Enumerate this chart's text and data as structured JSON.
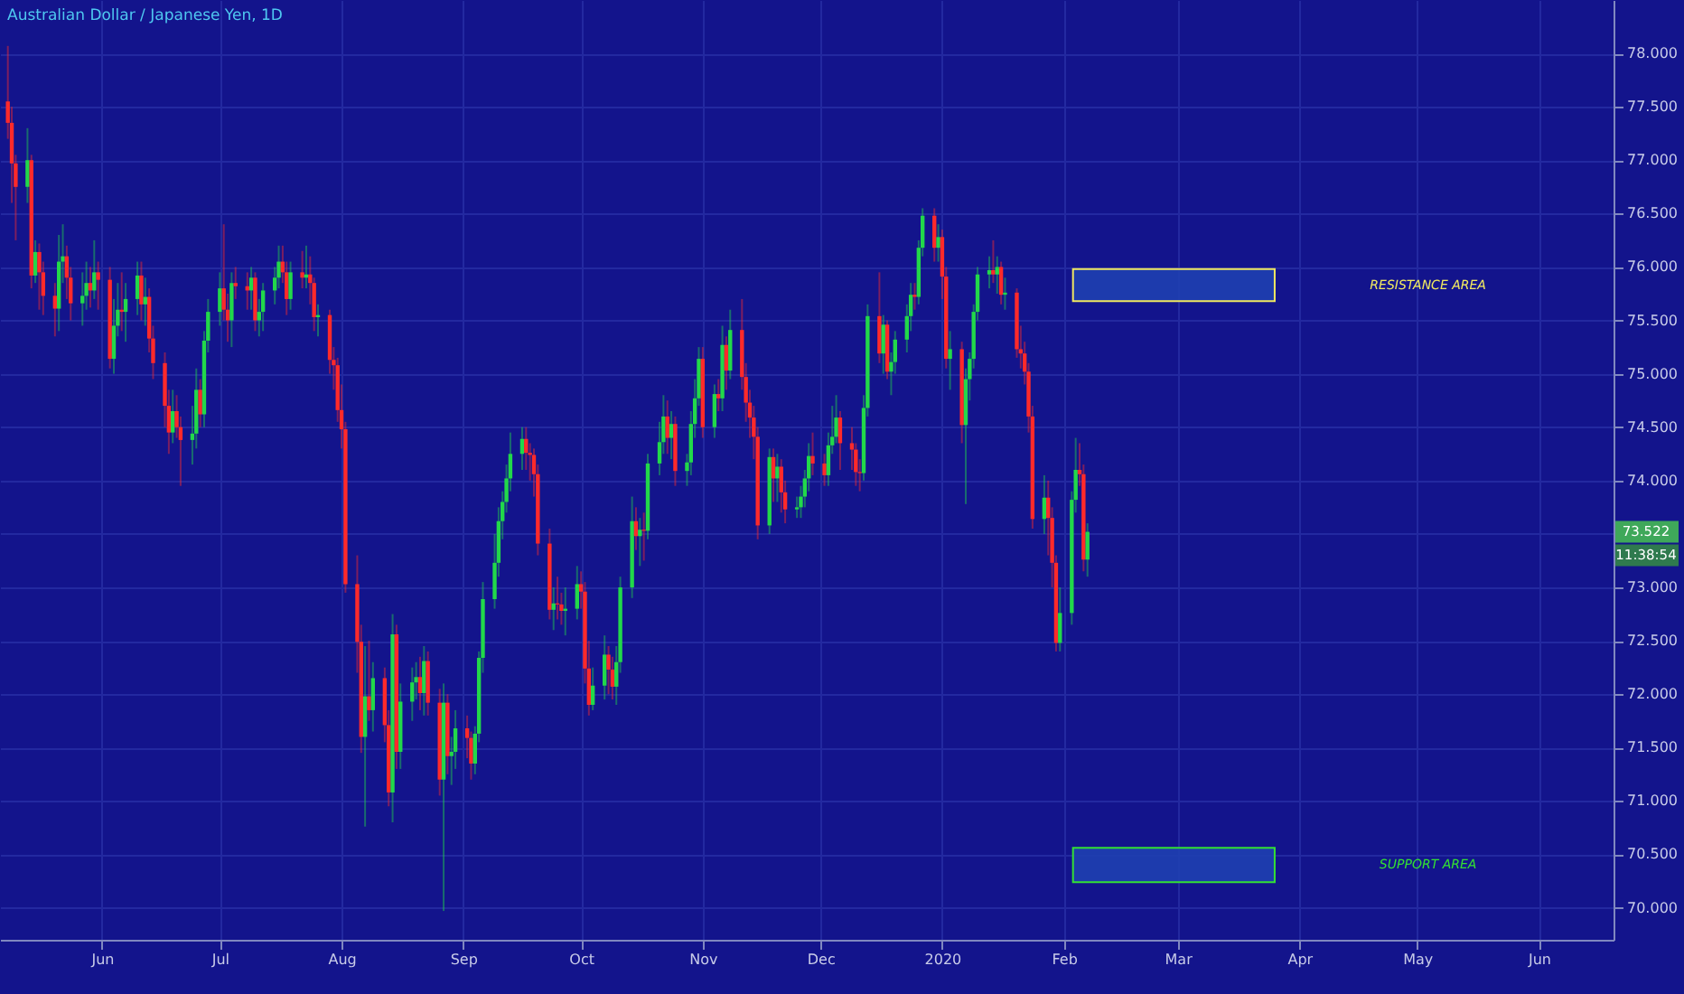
{
  "chart_data": {
    "type": "candlestick",
    "title": "Australian Dollar / Japanese Yen, 1D",
    "colors": [
      "#ff2a2a",
      "#ff2a2a",
      "#ff2a2a",
      "#22d84a",
      "#ff2a2a",
      "#22d84a",
      "#ff2a2a",
      "#ff2a2a",
      "#ff2a2a",
      "#22d84a",
      "#22d84a",
      "#ff2a2a",
      "#ff2a2a",
      "#22d84a",
      "#22d84a",
      "#ff2a2a",
      "#22d84a",
      "#ff2a2a",
      "#ff2a2a",
      "#22d84a",
      "#22d84a",
      "#ff2a2a",
      "#22d84a",
      "#22d84a",
      "#ff2a2a",
      "#22d84a",
      "#ff2a2a",
      "#ff2a2a",
      "#ff2a2a",
      "#ff2a2a",
      "#22d84a",
      "#ff2a2a",
      "#ff2a2a",
      "#22d84a",
      "#22d84a",
      "#ff2a2a",
      "#22d84a",
      "#22d84a",
      "#22d84a",
      "#ff2a2a",
      "#ff2a2a",
      "#22d84a",
      "#ff2a2a",
      "#ff2a2a",
      "#22d84a",
      "#ff2a2a",
      "#22d84a",
      "#22d84a",
      "#22d84a",
      "#22d84a",
      "#ff2a2a",
      "#ff2a2a",
      "#22d84a",
      "#ff2a2a",
      "#22d84a",
      "#ff2a2a",
      "#ff2a2a",
      "#22d84a",
      "#ff2a2a",
      "#ff2a2a",
      "#ff2a2a",
      "#ff2a2a",
      "#ff2a2a",
      "#ff2a2a",
      "#ff2a2a",
      "#22d84a",
      "#ff2a2a",
      "#22d84a",
      "#ff2a2a",
      "#ff2a2a",
      "#22d84a",
      "#ff2a2a",
      "#22d84a",
      "#22d84a",
      "#22d84a",
      "#ff2a2a",
      "#22d84a",
      "#ff2a2a",
      "#ff2a2a",
      "#22d84a",
      "#ff2a2a",
      "#22d84a",
      "#22d84a",
      "#ff2a2a",
      "#ff2a2a",
      "#22d84a",
      "#22d84a",
      "#22d84a",
      "#22d84a",
      "#22d84a",
      "#22d84a",
      "#22d84a",
      "#22d84a",
      "#22d84a",
      "#ff2a2a",
      "#ff2a2a",
      "#ff2a2a",
      "#ff2a2a",
      "#ff2a2a",
      "#22d84a",
      "#ff2a2a",
      "#ff2a2a",
      "#22d84a",
      "#22d84a",
      "#ff2a2a",
      "#ff2a2a",
      "#ff2a2a",
      "#22d84a",
      "#22d84a",
      "#ff2a2a",
      "#ff2a2a",
      "#22d84a",
      "#22d84a",
      "#22d84a",
      "#ff2a2a",
      "#22d84a",
      "#ff2a2a",
      "#22d84a",
      "#22d84a",
      "#22d84a",
      "#ff2a2a",
      "#22d84a",
      "#ff2a2a",
      "#22d84a",
      "#22d84a",
      "#22d84a",
      "#22d84a",
      "#ff2a2a",
      "#22d84a",
      "#ff2a2a",
      "#22d84a",
      "#ff2a2a",
      "#22d84a",
      "#ff2a2a",
      "#ff2a2a",
      "#ff2a2a",
      "#ff2a2a",
      "#ff2a2a",
      "#22d84a",
      "#ff2a2a",
      "#22d84a",
      "#ff2a2a",
      "#ff2a2a",
      "#22d84a",
      "#22d84a",
      "#22d84a",
      "#22d84a",
      "#ff2a2a",
      "#ff2a2a",
      "#22d84a",
      "#22d84a",
      "#22d84a",
      "#ff2a2a",
      "#ff2a2a",
      "#ff2a2a",
      "#ff2a2a",
      "#22d84a",
      "#22d84a",
      "#ff2a2a",
      "#22d84a",
      "#ff2a2a",
      "#22d84a",
      "#22d84a",
      "#22d84a",
      "#22d84a",
      "#ff2a2a",
      "#22d84a",
      "#22d84a",
      "#ff2a2a",
      "#22d84a",
      "#ff2a2a",
      "#ff2a2a",
      "#22d84a",
      "#ff2a2a",
      "#22d84a",
      "#22d84a",
      "#22d84a",
      "#22d84a",
      "#22d84a",
      "#ff2a2a",
      "#22d84a",
      "#ff2a2a",
      "#22d84a",
      "#ff2a2a",
      "#ff2a2a",
      "#ff2a2a",
      "#ff2a2a",
      "#ff2a2a",
      "#22d84a",
      "#ff2a2a",
      "#ff2a2a",
      "#ff2a2a",
      "#22d84a",
      "#22d84a",
      "#22d84a",
      "#ff2a2a",
      "#ff2a2a",
      "#22d84a"
    ],
    "x": [
      "2019-05-08",
      "2019-05-09",
      "2019-05-10",
      "2019-05-13",
      "2019-05-14",
      "2019-05-15",
      "2019-05-16",
      "2019-05-17",
      "2019-05-20",
      "2019-05-21",
      "2019-05-22",
      "2019-05-23",
      "2019-05-24",
      "2019-05-27",
      "2019-05-28",
      "2019-05-29",
      "2019-05-30",
      "2019-05-31",
      "2019-06-03",
      "2019-06-04",
      "2019-06-05",
      "2019-06-06",
      "2019-06-07",
      "2019-06-10",
      "2019-06-11",
      "2019-06-12",
      "2019-06-13",
      "2019-06-14",
      "2019-06-17",
      "2019-06-18",
      "2019-06-19",
      "2019-06-20",
      "2019-06-21",
      "2019-06-24",
      "2019-06-25",
      "2019-06-26",
      "2019-06-27",
      "2019-06-28",
      "2019-07-01",
      "2019-07-02",
      "2019-07-03",
      "2019-07-04",
      "2019-07-05",
      "2019-07-08",
      "2019-07-09",
      "2019-07-10",
      "2019-07-11",
      "2019-07-12",
      "2019-07-15",
      "2019-07-16",
      "2019-07-17",
      "2019-07-18",
      "2019-07-19",
      "2019-07-22",
      "2019-07-23",
      "2019-07-24",
      "2019-07-25",
      "2019-07-26",
      "2019-07-29",
      "2019-07-30",
      "2019-07-31",
      "2019-08-01",
      "2019-08-02",
      "2019-08-05",
      "2019-08-06",
      "2019-08-07",
      "2019-08-08",
      "2019-08-09",
      "2019-08-12",
      "2019-08-13",
      "2019-08-14",
      "2019-08-15",
      "2019-08-16",
      "2019-08-19",
      "2019-08-20",
      "2019-08-21",
      "2019-08-22",
      "2019-08-23",
      "2019-08-26",
      "2019-08-27",
      "2019-08-28",
      "2019-08-29",
      "2019-08-30",
      "2019-09-02",
      "2019-09-03",
      "2019-09-04",
      "2019-09-05",
      "2019-09-06",
      "2019-09-09",
      "2019-09-10",
      "2019-09-11",
      "2019-09-12",
      "2019-09-13",
      "2019-09-16",
      "2019-09-17",
      "2019-09-18",
      "2019-09-19",
      "2019-09-20",
      "2019-09-23",
      "2019-09-24",
      "2019-09-25",
      "2019-09-26",
      "2019-09-27",
      "2019-09-30",
      "2019-10-01",
      "2019-10-02",
      "2019-10-03",
      "2019-10-04",
      "2019-10-07",
      "2019-10-08",
      "2019-10-09",
      "2019-10-10",
      "2019-10-11",
      "2019-10-14",
      "2019-10-15",
      "2019-10-16",
      "2019-10-17",
      "2019-10-18",
      "2019-10-21",
      "2019-10-22",
      "2019-10-23",
      "2019-10-24",
      "2019-10-25",
      "2019-10-28",
      "2019-10-29",
      "2019-10-30",
      "2019-10-31",
      "2019-11-01",
      "2019-11-04",
      "2019-11-05",
      "2019-11-06",
      "2019-11-07",
      "2019-11-08",
      "2019-11-11",
      "2019-11-12",
      "2019-11-13",
      "2019-11-14",
      "2019-11-15",
      "2019-11-18",
      "2019-11-19",
      "2019-11-20",
      "2019-11-21",
      "2019-11-22",
      "2019-11-25",
      "2019-11-26",
      "2019-11-27",
      "2019-11-28",
      "2019-11-29",
      "2019-12-02",
      "2019-12-03",
      "2019-12-04",
      "2019-12-05",
      "2019-12-06",
      "2019-12-09",
      "2019-12-10",
      "2019-12-11",
      "2019-12-12",
      "2019-12-13",
      "2019-12-16",
      "2019-12-17",
      "2019-12-18",
      "2019-12-19",
      "2019-12-20",
      "2019-12-23",
      "2019-12-24",
      "2019-12-25",
      "2019-12-26",
      "2019-12-27",
      "2019-12-30",
      "2019-12-31",
      "2020-01-01",
      "2020-01-02",
      "2020-01-03",
      "2020-01-06",
      "2020-01-07",
      "2020-01-08",
      "2020-01-09",
      "2020-01-10",
      "2020-01-13",
      "2020-01-14",
      "2020-01-15",
      "2020-01-16",
      "2020-01-17",
      "2020-01-20",
      "2020-01-21",
      "2020-01-22",
      "2020-01-23",
      "2020-01-24",
      "2020-01-27",
      "2020-01-28",
      "2020-01-29",
      "2020-01-30",
      "2020-01-31",
      "2020-02-03",
      "2020-02-04",
      "2020-02-05",
      "2020-02-06",
      "2020-02-07"
    ],
    "ohlc": [
      [
        77.55,
        78.07,
        77.2,
        77.35
      ],
      [
        77.35,
        77.5,
        76.6,
        76.97
      ],
      [
        76.97,
        77.05,
        76.25,
        76.75
      ],
      [
        76.75,
        77.3,
        76.6,
        77.0
      ],
      [
        77.0,
        77.05,
        75.8,
        75.92
      ],
      [
        75.92,
        76.25,
        75.85,
        76.14
      ],
      [
        76.14,
        76.22,
        75.6,
        75.95
      ],
      [
        75.95,
        76.05,
        75.55,
        75.73
      ],
      [
        75.73,
        75.85,
        75.35,
        75.61
      ],
      [
        75.61,
        76.3,
        75.4,
        76.05
      ],
      [
        76.05,
        76.4,
        75.85,
        76.1
      ],
      [
        76.1,
        76.2,
        75.7,
        75.9
      ],
      [
        75.9,
        76.0,
        75.5,
        75.66
      ],
      [
        75.66,
        75.95,
        75.45,
        75.73
      ],
      [
        75.73,
        76.05,
        75.6,
        75.85
      ],
      [
        75.85,
        76.0,
        75.62,
        75.78
      ],
      [
        75.78,
        76.25,
        75.7,
        75.95
      ],
      [
        75.95,
        76.05,
        75.6,
        75.88
      ],
      [
        75.88,
        76.0,
        75.05,
        75.14
      ],
      [
        75.14,
        75.7,
        75.0,
        75.45
      ],
      [
        75.45,
        75.85,
        75.35,
        75.6
      ],
      [
        75.6,
        75.95,
        75.4,
        75.58
      ],
      [
        75.58,
        75.85,
        75.3,
        75.7
      ],
      [
        75.7,
        76.05,
        75.55,
        75.92
      ],
      [
        75.92,
        76.05,
        75.5,
        75.65
      ],
      [
        75.65,
        75.9,
        75.45,
        75.72
      ],
      [
        75.72,
        75.8,
        75.2,
        75.33
      ],
      [
        75.33,
        75.45,
        74.95,
        75.1
      ],
      [
        75.1,
        75.2,
        74.5,
        74.7
      ],
      [
        74.7,
        74.85,
        74.25,
        74.45
      ],
      [
        74.45,
        74.85,
        74.35,
        74.65
      ],
      [
        74.65,
        74.8,
        74.4,
        74.5
      ],
      [
        74.5,
        74.6,
        73.95,
        74.38
      ],
      [
        74.38,
        74.7,
        74.15,
        74.44
      ],
      [
        74.44,
        75.05,
        74.3,
        74.85
      ],
      [
        74.85,
        74.95,
        74.5,
        74.62
      ],
      [
        74.62,
        75.4,
        74.5,
        75.31
      ],
      [
        75.31,
        75.7,
        75.2,
        75.58
      ],
      [
        75.58,
        75.95,
        75.45,
        75.8
      ],
      [
        75.8,
        76.4,
        75.5,
        75.6
      ],
      [
        75.6,
        75.75,
        75.3,
        75.5
      ],
      [
        75.5,
        75.95,
        75.25,
        75.85
      ],
      [
        75.85,
        76.0,
        75.7,
        75.82
      ],
      [
        75.82,
        75.95,
        75.6,
        75.78
      ],
      [
        75.78,
        76.0,
        75.6,
        75.9
      ],
      [
        75.9,
        75.95,
        75.4,
        75.5
      ],
      [
        75.5,
        75.7,
        75.35,
        75.58
      ],
      [
        75.58,
        75.85,
        75.4,
        75.78
      ],
      [
        75.78,
        76.0,
        75.65,
        75.9
      ],
      [
        75.9,
        76.2,
        75.8,
        76.05
      ],
      [
        76.05,
        76.2,
        75.85,
        75.95
      ],
      [
        75.95,
        76.05,
        75.55,
        75.7
      ],
      [
        75.7,
        76.05,
        75.6,
        75.95
      ],
      [
        75.95,
        76.15,
        75.8,
        75.9
      ],
      [
        75.9,
        76.2,
        75.8,
        75.93
      ],
      [
        75.93,
        76.1,
        75.65,
        75.85
      ],
      [
        75.85,
        75.9,
        75.4,
        75.53
      ],
      [
        75.53,
        75.65,
        75.35,
        75.55
      ],
      [
        75.55,
        75.6,
        75.0,
        75.13
      ],
      [
        75.13,
        75.25,
        74.85,
        75.08
      ],
      [
        75.08,
        75.15,
        74.55,
        74.66
      ],
      [
        74.66,
        74.9,
        74.3,
        74.48
      ],
      [
        74.48,
        74.55,
        72.95,
        73.03
      ],
      [
        73.03,
        73.3,
        72.2,
        72.49
      ],
      [
        72.49,
        72.65,
        71.45,
        71.6
      ],
      [
        71.6,
        72.45,
        70.76,
        71.98
      ],
      [
        71.98,
        72.5,
        71.75,
        71.85
      ],
      [
        71.85,
        72.3,
        71.65,
        72.15
      ],
      [
        72.15,
        72.25,
        71.55,
        71.71
      ],
      [
        71.71,
        71.85,
        70.95,
        71.08
      ],
      [
        71.08,
        72.75,
        70.8,
        72.56
      ],
      [
        72.56,
        72.65,
        71.3,
        71.46
      ],
      [
        71.46,
        72.1,
        71.3,
        71.93
      ],
      [
        71.93,
        72.25,
        71.75,
        72.11
      ],
      [
        72.11,
        72.3,
        71.95,
        72.16
      ],
      [
        72.16,
        72.35,
        71.85,
        72.01
      ],
      [
        72.01,
        72.45,
        71.8,
        72.31
      ],
      [
        72.31,
        72.4,
        71.8,
        71.92
      ],
      [
        71.92,
        72.05,
        71.05,
        71.2
      ],
      [
        71.2,
        72.1,
        69.97,
        71.92
      ],
      [
        71.92,
        72.0,
        71.25,
        71.42
      ],
      [
        71.42,
        71.6,
        71.15,
        71.46
      ],
      [
        71.46,
        71.85,
        71.3,
        71.68
      ],
      [
        71.68,
        71.8,
        71.4,
        71.59
      ],
      [
        71.59,
        71.65,
        71.2,
        71.35
      ],
      [
        71.35,
        71.7,
        71.25,
        71.63
      ],
      [
        71.63,
        72.4,
        71.55,
        72.34
      ],
      [
        72.34,
        73.05,
        72.2,
        72.89
      ],
      [
        72.89,
        73.5,
        72.8,
        73.23
      ],
      [
        73.23,
        73.75,
        73.1,
        73.62
      ],
      [
        73.62,
        73.9,
        73.45,
        73.8
      ],
      [
        73.8,
        74.15,
        73.7,
        74.02
      ],
      [
        74.02,
        74.45,
        73.9,
        74.25
      ],
      [
        74.25,
        74.5,
        74.1,
        74.39
      ],
      [
        74.39,
        74.5,
        74.1,
        74.26
      ],
      [
        74.26,
        74.35,
        74.0,
        74.24
      ],
      [
        74.24,
        74.3,
        73.85,
        74.06
      ],
      [
        74.06,
        74.15,
        73.3,
        73.41
      ],
      [
        73.41,
        73.55,
        72.7,
        72.79
      ],
      [
        72.79,
        73.0,
        72.6,
        72.85
      ],
      [
        72.85,
        73.1,
        72.7,
        72.84
      ],
      [
        72.84,
        72.95,
        72.65,
        72.78
      ],
      [
        72.78,
        73.0,
        72.55,
        72.8
      ],
      [
        72.8,
        73.2,
        72.7,
        73.03
      ],
      [
        73.03,
        73.15,
        72.8,
        72.96
      ],
      [
        72.96,
        73.05,
        72.1,
        72.24
      ],
      [
        72.24,
        72.5,
        71.8,
        71.9
      ],
      [
        71.9,
        72.25,
        71.85,
        72.08
      ],
      [
        72.08,
        72.55,
        71.95,
        72.37
      ],
      [
        72.37,
        72.45,
        72.0,
        72.23
      ],
      [
        72.23,
        72.35,
        71.95,
        72.07
      ],
      [
        72.07,
        72.45,
        71.9,
        72.3
      ],
      [
        72.3,
        73.1,
        72.2,
        73.0
      ],
      [
        73.0,
        73.85,
        72.9,
        73.62
      ],
      [
        73.62,
        73.75,
        73.35,
        73.48
      ],
      [
        73.48,
        73.65,
        73.2,
        73.54
      ],
      [
        73.54,
        73.7,
        73.25,
        73.53
      ],
      [
        73.53,
        74.25,
        73.45,
        74.16
      ],
      [
        74.16,
        74.55,
        74.05,
        74.36
      ],
      [
        74.36,
        74.8,
        74.25,
        74.6
      ],
      [
        74.6,
        74.75,
        74.25,
        74.4
      ],
      [
        74.4,
        74.65,
        74.2,
        74.53
      ],
      [
        74.53,
        74.6,
        73.95,
        74.09
      ],
      [
        74.09,
        74.25,
        73.95,
        74.17
      ],
      [
        74.17,
        74.65,
        74.05,
        74.53
      ],
      [
        74.53,
        74.95,
        74.4,
        74.77
      ],
      [
        74.77,
        75.25,
        74.7,
        75.14
      ],
      [
        75.14,
        75.25,
        74.4,
        74.5
      ],
      [
        74.5,
        74.9,
        74.4,
        74.81
      ],
      [
        74.81,
        74.95,
        74.65,
        74.77
      ],
      [
        74.77,
        75.45,
        74.65,
        75.27
      ],
      [
        75.27,
        75.35,
        74.85,
        75.03
      ],
      [
        75.03,
        75.6,
        74.95,
        75.41
      ],
      [
        75.41,
        75.7,
        74.85,
        74.97
      ],
      [
        74.97,
        75.1,
        74.55,
        74.73
      ],
      [
        74.73,
        74.85,
        74.4,
        74.59
      ],
      [
        74.59,
        74.7,
        74.2,
        74.41
      ],
      [
        74.41,
        74.5,
        73.45,
        73.58
      ],
      [
        73.58,
        74.3,
        73.5,
        74.22
      ],
      [
        74.22,
        74.3,
        73.8,
        74.02
      ],
      [
        74.02,
        74.25,
        73.8,
        74.13
      ],
      [
        74.13,
        74.2,
        73.7,
        73.89
      ],
      [
        73.89,
        74.0,
        73.6,
        73.73
      ],
      [
        73.73,
        73.85,
        73.65,
        73.75
      ],
      [
        73.75,
        73.95,
        73.65,
        73.85
      ],
      [
        73.85,
        74.1,
        73.75,
        74.02
      ],
      [
        74.02,
        74.35,
        73.9,
        74.23
      ],
      [
        74.23,
        74.45,
        74.05,
        74.16
      ],
      [
        74.16,
        74.25,
        73.95,
        74.05
      ],
      [
        74.05,
        74.45,
        73.95,
        74.33
      ],
      [
        74.33,
        74.7,
        74.25,
        74.41
      ],
      [
        74.41,
        74.8,
        74.35,
        74.59
      ],
      [
        74.59,
        74.65,
        74.1,
        74.35
      ],
      [
        74.35,
        74.5,
        74.1,
        74.29
      ],
      [
        74.29,
        74.35,
        73.95,
        74.08
      ],
      [
        74.08,
        74.2,
        73.9,
        74.07
      ],
      [
        74.07,
        74.8,
        74.0,
        74.68
      ],
      [
        74.68,
        75.65,
        74.6,
        75.54
      ],
      [
        75.54,
        75.95,
        75.1,
        75.19
      ],
      [
        75.19,
        75.55,
        75.0,
        75.46
      ],
      [
        75.46,
        75.5,
        74.95,
        75.02
      ],
      [
        75.02,
        75.2,
        74.8,
        75.11
      ],
      [
        75.11,
        75.4,
        75.0,
        75.32
      ],
      [
        75.32,
        75.65,
        75.2,
        75.54
      ],
      [
        75.54,
        75.85,
        75.4,
        75.74
      ],
      [
        75.74,
        75.85,
        75.6,
        75.72
      ],
      [
        75.72,
        76.25,
        75.65,
        76.18
      ],
      [
        76.18,
        76.55,
        76.1,
        76.48
      ],
      [
        76.48,
        76.55,
        76.05,
        76.18
      ],
      [
        76.18,
        76.4,
        76.05,
        76.28
      ],
      [
        76.28,
        76.35,
        75.7,
        75.91
      ],
      [
        75.91,
        76.0,
        75.05,
        75.14
      ],
      [
        75.14,
        75.4,
        74.85,
        75.23
      ],
      [
        75.23,
        75.3,
        74.35,
        74.52
      ],
      [
        74.52,
        75.05,
        73.78,
        74.95
      ],
      [
        74.95,
        75.2,
        74.75,
        75.14
      ],
      [
        75.14,
        75.65,
        75.05,
        75.58
      ],
      [
        75.58,
        76.0,
        75.5,
        75.93
      ],
      [
        75.93,
        76.1,
        75.8,
        75.97
      ],
      [
        75.97,
        76.25,
        75.85,
        75.93
      ],
      [
        75.93,
        76.1,
        75.75,
        76.0
      ],
      [
        76.0,
        76.05,
        75.65,
        75.74
      ],
      [
        75.74,
        75.9,
        75.6,
        75.76
      ],
      [
        75.76,
        75.8,
        75.15,
        75.23
      ],
      [
        75.23,
        75.45,
        75.05,
        75.19
      ],
      [
        75.19,
        75.3,
        74.9,
        75.02
      ],
      [
        75.02,
        75.1,
        74.45,
        74.6
      ],
      [
        74.6,
        74.7,
        73.55,
        73.64
      ],
      [
        73.64,
        74.05,
        73.5,
        73.84
      ],
      [
        73.84,
        74.0,
        73.3,
        73.65
      ],
      [
        73.65,
        73.75,
        73.0,
        73.23
      ],
      [
        73.23,
        73.3,
        72.4,
        72.48
      ],
      [
        72.48,
        73.0,
        72.4,
        72.76
      ],
      [
        72.76,
        73.9,
        72.65,
        73.82
      ],
      [
        73.82,
        74.4,
        73.7,
        74.1
      ],
      [
        74.1,
        74.35,
        73.95,
        74.06
      ],
      [
        74.06,
        74.15,
        73.15,
        73.26
      ],
      [
        73.26,
        73.6,
        73.1,
        73.52
      ]
    ],
    "xlim": [
      "2019-05-06",
      "2020-06-20"
    ],
    "xticks": [
      {
        "value": "2019-06-01",
        "label": "Jun"
      },
      {
        "value": "2019-07-01",
        "label": "Jul"
      },
      {
        "value": "2019-08-01",
        "label": "Aug"
      },
      {
        "value": "2019-09-01",
        "label": "Sep"
      },
      {
        "value": "2019-10-01",
        "label": "Oct"
      },
      {
        "value": "2019-11-01",
        "label": "Nov"
      },
      {
        "value": "2019-12-01",
        "label": "Dec"
      },
      {
        "value": "2020-01-01",
        "label": "2020"
      },
      {
        "value": "2020-02-01",
        "label": "Feb"
      },
      {
        "value": "2020-03-01",
        "label": "Mar"
      },
      {
        "value": "2020-04-01",
        "label": "Apr"
      },
      {
        "value": "2020-05-01",
        "label": "May"
      },
      {
        "value": "2020-06-01",
        "label": "Jun"
      }
    ],
    "ylim": [
      69.7,
      78.5
    ],
    "yticks": [
      {
        "value": 70,
        "label": "70.000"
      },
      {
        "value": 70.5,
        "label": "70.500"
      },
      {
        "value": 71,
        "label": "71.000"
      },
      {
        "value": 71.5,
        "label": "71.500"
      },
      {
        "value": 72,
        "label": "72.000"
      },
      {
        "value": 72.5,
        "label": "72.500"
      },
      {
        "value": 73,
        "label": "73.000"
      },
      {
        "value": 73.5,
        "label": null
      },
      {
        "value": 74,
        "label": "74.000"
      },
      {
        "value": 74.5,
        "label": "74.500"
      },
      {
        "value": 75,
        "label": "75.000"
      },
      {
        "value": 75.5,
        "label": "75.500"
      },
      {
        "value": 76,
        "label": "76.000"
      },
      {
        "value": 76.5,
        "label": "76.500"
      },
      {
        "value": 77,
        "label": "77.000"
      },
      {
        "value": 77.5,
        "label": "77.500"
      },
      {
        "value": 78,
        "label": "78.000"
      }
    ],
    "bands": [
      {
        "axis": "y",
        "from": 75.68,
        "to": 75.98,
        "label": "RESISTANCE AREA",
        "color": "#f0e860"
      },
      {
        "axis": "y",
        "from": 70.24,
        "to": 70.56,
        "label": "SUPPORT AREA",
        "color": "#33e033"
      }
    ],
    "annotations": [
      "73.522",
      "11:38:54"
    ],
    "grid": true
  }
}
